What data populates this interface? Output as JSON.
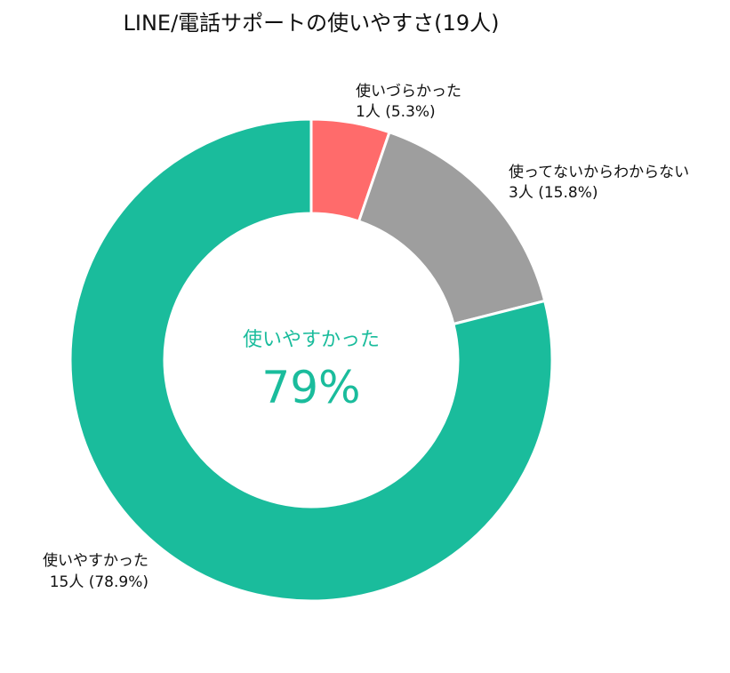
{
  "chart_data": {
    "type": "pie",
    "title": "LINE/電話サポートの使いやすさ(19人)",
    "slices": [
      {
        "name": "使いづらかった",
        "count": 1,
        "percent": 5.3,
        "count_label": "1人 (5.3%)",
        "color": "#ff6b6b"
      },
      {
        "name": "使ってないからわからない",
        "count": 3,
        "percent": 15.8,
        "count_label": "3人 (15.8%)",
        "color": "#9e9e9e"
      },
      {
        "name": "使いやすかった",
        "count": 15,
        "percent": 78.9,
        "count_label": "15人 (78.9%)",
        "color": "#1abc9c"
      }
    ],
    "total": 19,
    "center": {
      "label": "使いやすかった",
      "value": "79%",
      "color": "#1abc9c"
    },
    "direction": "clockwise-from-top",
    "separator_color": "#ffffff"
  }
}
